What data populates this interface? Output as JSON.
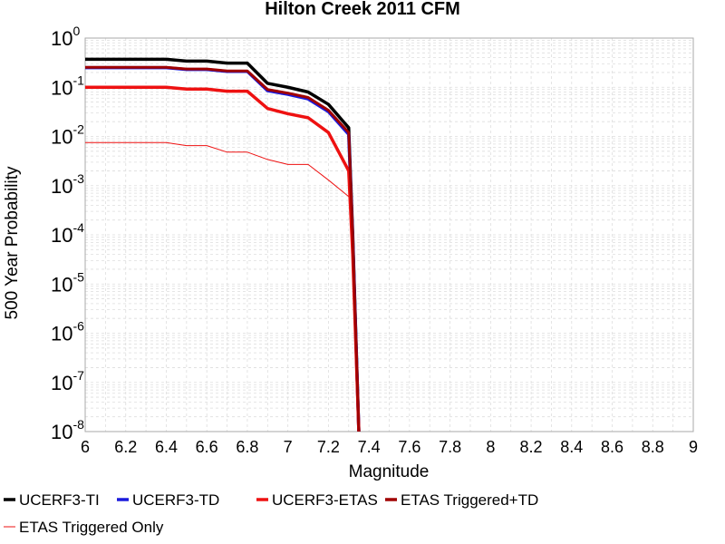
{
  "chart_data": {
    "type": "line",
    "title": "Hilton Creek 2011 CFM",
    "xlabel": "Magnitude",
    "ylabel": "500 Year Probability",
    "xlim": [
      6,
      9
    ],
    "ylim": [
      1e-08,
      1
    ],
    "yscale": "log",
    "grid": true,
    "legend_position": "bottom",
    "x_ticks": [
      "6",
      "6.2",
      "6.4",
      "6.6",
      "6.8",
      "7",
      "7.2",
      "7.4",
      "7.6",
      "7.8",
      "8",
      "8.2",
      "8.4",
      "8.6",
      "8.8",
      "9"
    ],
    "y_ticks": [
      {
        "base": "10",
        "exp": "0"
      },
      {
        "base": "10",
        "exp": "-1"
      },
      {
        "base": "10",
        "exp": "-2"
      },
      {
        "base": "10",
        "exp": "-3"
      },
      {
        "base": "10",
        "exp": "-4"
      },
      {
        "base": "10",
        "exp": "-5"
      },
      {
        "base": "10",
        "exp": "-6"
      },
      {
        "base": "10",
        "exp": "-7"
      },
      {
        "base": "10",
        "exp": "-8"
      }
    ],
    "series": [
      {
        "name": "UCERF3-TI",
        "color": "#000000",
        "width": 3.5,
        "x": [
          6.0,
          6.1,
          6.2,
          6.3,
          6.4,
          6.5,
          6.6,
          6.7,
          6.8,
          6.9,
          7.0,
          7.1,
          7.2,
          7.3,
          7.32,
          7.35
        ],
        "y": [
          0.37,
          0.37,
          0.37,
          0.37,
          0.37,
          0.34,
          0.34,
          0.31,
          0.31,
          0.12,
          0.1,
          0.08,
          0.045,
          0.015,
          0.0001,
          1e-08
        ]
      },
      {
        "name": "UCERF3-TD",
        "color": "#1a1adc",
        "width": 3.5,
        "x": [
          6.0,
          6.1,
          6.2,
          6.3,
          6.4,
          6.5,
          6.6,
          6.7,
          6.8,
          6.9,
          7.0,
          7.1,
          7.2,
          7.3,
          7.32,
          7.35
        ],
        "y": [
          0.25,
          0.25,
          0.25,
          0.25,
          0.25,
          0.23,
          0.23,
          0.21,
          0.21,
          0.085,
          0.072,
          0.058,
          0.032,
          0.011,
          8e-05,
          1e-08
        ]
      },
      {
        "name": "UCERF3-ETAS",
        "color": "#ee1111",
        "width": 3.5,
        "x": [
          6.0,
          6.1,
          6.2,
          6.3,
          6.4,
          6.5,
          6.6,
          6.7,
          6.8,
          6.9,
          7.0,
          7.1,
          7.2,
          7.3,
          7.32,
          7.35
        ],
        "y": [
          0.1,
          0.1,
          0.1,
          0.1,
          0.1,
          0.092,
          0.092,
          0.083,
          0.083,
          0.037,
          0.029,
          0.024,
          0.012,
          0.002,
          4e-05,
          1e-08
        ]
      },
      {
        "name": "ETAS Triggered+TD",
        "color": "#a00000",
        "width": 3,
        "x": [
          6.0,
          6.1,
          6.2,
          6.3,
          6.4,
          6.5,
          6.6,
          6.7,
          6.8,
          6.9,
          7.0,
          7.1,
          7.2,
          7.3,
          7.32,
          7.35
        ],
        "y": [
          0.255,
          0.255,
          0.255,
          0.255,
          0.255,
          0.235,
          0.235,
          0.215,
          0.215,
          0.09,
          0.076,
          0.062,
          0.034,
          0.012,
          9e-05,
          1e-08
        ]
      },
      {
        "name": "ETAS Triggered Only",
        "color": "#ee1111",
        "width": 1,
        "x": [
          6.0,
          6.1,
          6.2,
          6.3,
          6.4,
          6.5,
          6.6,
          6.7,
          6.8,
          6.9,
          7.0,
          7.1,
          7.2,
          7.3
        ],
        "y": [
          0.0075,
          0.0075,
          0.0075,
          0.0075,
          0.0075,
          0.0065,
          0.0065,
          0.0048,
          0.0048,
          0.0034,
          0.0027,
          0.0027,
          0.0013,
          0.0006
        ]
      }
    ]
  }
}
